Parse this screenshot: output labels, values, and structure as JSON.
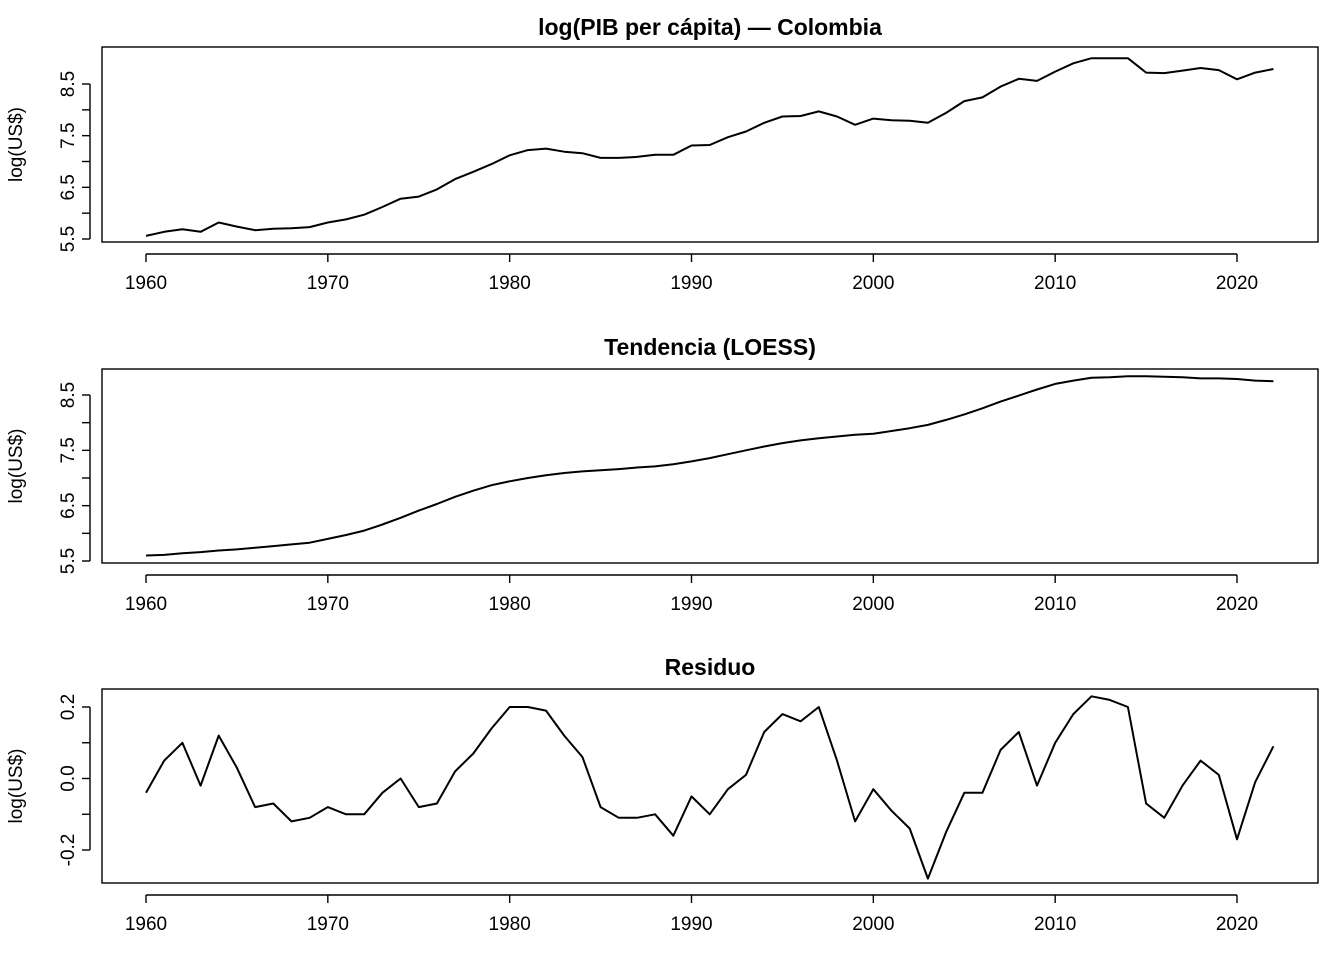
{
  "chart_data": [
    {
      "type": "line",
      "title": "log(PIB per cápita) — Colombia",
      "xlabel": "",
      "ylabel": "log(US$)",
      "xlim": [
        1957.5,
        2024.5
      ],
      "ylim": [
        5.5,
        9.0
      ],
      "xticks": [
        "1960",
        "1970",
        "1980",
        "1990",
        "2000",
        "2010",
        "2020"
      ],
      "yticks": [
        "5.5",
        "6.5",
        "7.5",
        "8.5"
      ],
      "grid": false,
      "series": [
        {
          "x": [
            1960,
            1961,
            1962,
            1963,
            1964,
            1965,
            1966,
            1967,
            1968,
            1969,
            1970,
            1971,
            1972,
            1973,
            1974,
            1975,
            1976,
            1977,
            1978,
            1979,
            1980,
            1981,
            1982,
            1983,
            1984,
            1985,
            1986,
            1987,
            1988,
            1989,
            1990,
            1991,
            1992,
            1993,
            1994,
            1995,
            1996,
            1997,
            1998,
            1999,
            2000,
            2001,
            2002,
            2003,
            2004,
            2005,
            2006,
            2007,
            2008,
            2009,
            2010,
            2011,
            2012,
            2013,
            2014,
            2015,
            2016,
            2017,
            2018,
            2019,
            2020,
            2021,
            2022
          ],
          "values": [
            5.56,
            5.64,
            5.69,
            5.64,
            5.82,
            5.74,
            5.67,
            5.7,
            5.71,
            5.73,
            5.82,
            5.88,
            5.97,
            6.12,
            6.28,
            6.32,
            6.46,
            6.66,
            6.8,
            6.95,
            7.12,
            7.22,
            7.25,
            7.19,
            7.16,
            7.07,
            7.07,
            7.09,
            7.13,
            7.13,
            7.31,
            7.32,
            7.47,
            7.58,
            7.75,
            7.87,
            7.88,
            7.97,
            7.87,
            7.71,
            7.83,
            7.8,
            7.79,
            7.75,
            7.94,
            8.17,
            8.24,
            8.45,
            8.6,
            8.56,
            8.74,
            8.9,
            9.0,
            9.0,
            9.0,
            8.72,
            8.71,
            8.76,
            8.81,
            8.77,
            8.59,
            8.72,
            8.79
          ]
        }
      ]
    },
    {
      "type": "line",
      "title": "Tendencia (LOESS)",
      "xlabel": "",
      "ylabel": "log(US$)",
      "xlim": [
        1957.5,
        2024.5
      ],
      "ylim": [
        5.5,
        9.0
      ],
      "xticks": [
        "1960",
        "1970",
        "1980",
        "1990",
        "2000",
        "2010",
        "2020"
      ],
      "yticks": [
        "5.5",
        "6.5",
        "7.5",
        "8.5"
      ],
      "grid": false,
      "series": [
        {
          "x": [
            1960,
            1961,
            1962,
            1963,
            1964,
            1965,
            1966,
            1967,
            1968,
            1969,
            1970,
            1971,
            1972,
            1973,
            1974,
            1975,
            1976,
            1977,
            1978,
            1979,
            1980,
            1981,
            1982,
            1983,
            1984,
            1985,
            1986,
            1987,
            1988,
            1989,
            1990,
            1991,
            1992,
            1993,
            1994,
            1995,
            1996,
            1997,
            1998,
            1999,
            2000,
            2001,
            2002,
            2003,
            2004,
            2005,
            2006,
            2007,
            2008,
            2009,
            2010,
            2011,
            2012,
            2013,
            2014,
            2015,
            2016,
            2017,
            2018,
            2019,
            2020,
            2021,
            2022
          ],
          "values": [
            5.6,
            5.61,
            5.64,
            5.66,
            5.69,
            5.71,
            5.74,
            5.77,
            5.8,
            5.83,
            5.9,
            5.97,
            6.05,
            6.16,
            6.28,
            6.41,
            6.53,
            6.66,
            6.77,
            6.87,
            6.94,
            7.0,
            7.05,
            7.09,
            7.12,
            7.14,
            7.16,
            7.19,
            7.21,
            7.25,
            7.3,
            7.36,
            7.43,
            7.5,
            7.57,
            7.63,
            7.68,
            7.72,
            7.75,
            7.78,
            7.8,
            7.85,
            7.9,
            7.96,
            8.05,
            8.15,
            8.26,
            8.38,
            8.49,
            8.6,
            8.7,
            8.76,
            8.81,
            8.82,
            8.84,
            8.84,
            8.83,
            8.82,
            8.8,
            8.8,
            8.79,
            8.76,
            8.75
          ]
        }
      ]
    },
    {
      "type": "line",
      "title": "Residuo",
      "xlabel": "",
      "ylabel": "log(US$)",
      "xlim": [
        1957.5,
        2024.5
      ],
      "ylim": [
        -0.3,
        0.25
      ],
      "xticks": [
        "1960",
        "1970",
        "1980",
        "1990",
        "2000",
        "2010",
        "2020"
      ],
      "yticks": [
        "-0.2",
        "0.0",
        "0.2"
      ],
      "grid": false,
      "series": [
        {
          "x": [
            1960,
            1961,
            1962,
            1963,
            1964,
            1965,
            1966,
            1967,
            1968,
            1969,
            1970,
            1971,
            1972,
            1973,
            1974,
            1975,
            1976,
            1977,
            1978,
            1979,
            1980,
            1981,
            1982,
            1983,
            1984,
            1985,
            1986,
            1987,
            1988,
            1989,
            1990,
            1991,
            1992,
            1993,
            1994,
            1995,
            1996,
            1997,
            1998,
            1999,
            2000,
            2001,
            2002,
            2003,
            2004,
            2005,
            2006,
            2007,
            2008,
            2009,
            2010,
            2011,
            2012,
            2013,
            2014,
            2015,
            2016,
            2017,
            2018,
            2019,
            2020,
            2021,
            2022
          ],
          "values": [
            -0.04,
            0.05,
            0.1,
            -0.02,
            0.12,
            0.03,
            -0.08,
            -0.07,
            -0.12,
            -0.11,
            -0.08,
            -0.1,
            -0.1,
            -0.04,
            0.0,
            -0.08,
            -0.07,
            0.02,
            0.07,
            0.14,
            0.2,
            0.2,
            0.19,
            0.12,
            0.06,
            -0.08,
            -0.11,
            -0.11,
            -0.1,
            -0.16,
            -0.05,
            -0.1,
            -0.03,
            0.01,
            0.13,
            0.18,
            0.16,
            0.2,
            0.05,
            -0.12,
            -0.03,
            -0.09,
            -0.14,
            -0.28,
            -0.15,
            -0.04,
            -0.04,
            0.08,
            0.13,
            -0.02,
            0.1,
            0.18,
            0.23,
            0.22,
            0.2,
            -0.07,
            -0.11,
            -0.02,
            0.05,
            0.01,
            -0.17,
            -0.01,
            0.09
          ]
        }
      ]
    }
  ]
}
